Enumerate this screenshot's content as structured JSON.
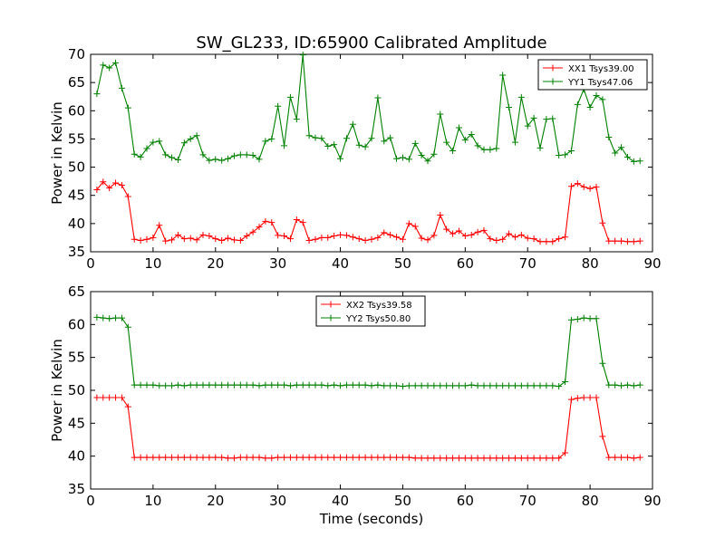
{
  "figure": {
    "title": "SW_GL233, ID:65900 Calibrated Amplitude"
  },
  "chart_data": [
    {
      "type": "line",
      "title": "SW_GL233, ID:65900 Calibrated Amplitude",
      "xlabel": "",
      "ylabel": "Power in Kelvin",
      "xlim": [
        0,
        90
      ],
      "ylim": [
        35,
        70
      ],
      "xticks": [
        0,
        10,
        20,
        30,
        40,
        50,
        60,
        70,
        80,
        90
      ],
      "yticks": [
        35,
        40,
        45,
        50,
        55,
        60,
        65,
        70
      ],
      "grid": false,
      "legend_position": "top-right",
      "x": [
        1,
        2,
        3,
        4,
        5,
        6,
        7,
        8,
        9,
        10,
        11,
        12,
        13,
        14,
        15,
        16,
        17,
        18,
        19,
        20,
        21,
        22,
        23,
        24,
        25,
        26,
        27,
        28,
        29,
        30,
        31,
        32,
        33,
        34,
        35,
        36,
        37,
        38,
        39,
        40,
        41,
        42,
        43,
        44,
        45,
        46,
        47,
        48,
        49,
        50,
        51,
        52,
        53,
        54,
        55,
        56,
        57,
        58,
        59,
        60,
        61,
        62,
        63,
        64,
        65,
        66,
        67,
        68,
        69,
        70,
        71,
        72,
        73,
        74,
        75,
        76,
        77,
        78,
        79,
        80,
        81,
        82,
        83,
        84,
        85,
        86,
        87,
        88
      ],
      "series": [
        {
          "name": "XX1 Tsys39.00",
          "color": "#ff0000",
          "values": [
            46.0,
            47.4,
            46.3,
            47.2,
            46.8,
            44.8,
            37.2,
            37.0,
            37.2,
            37.5,
            39.7,
            36.9,
            37.1,
            38.0,
            37.3,
            37.4,
            37.1,
            38.0,
            37.8,
            37.3,
            37.0,
            37.4,
            37.1,
            37.0,
            37.8,
            38.5,
            39.4,
            40.4,
            40.2,
            37.9,
            37.8,
            37.3,
            40.7,
            40.2,
            37.0,
            37.2,
            37.5,
            37.5,
            37.8,
            38.0,
            37.9,
            37.6,
            37.3,
            37.0,
            37.2,
            37.5,
            38.4,
            38.0,
            37.6,
            37.2,
            40.0,
            39.5,
            37.4,
            37.1,
            37.9,
            41.5,
            39.0,
            38.2,
            38.7,
            37.8,
            38.0,
            38.5,
            38.8,
            37.3,
            37.0,
            37.2,
            38.2,
            37.6,
            38.0,
            37.4,
            37.3,
            36.8,
            36.8,
            36.8,
            37.3,
            37.6,
            46.6,
            47.1,
            46.5,
            46.2,
            46.5,
            40.1,
            36.9,
            36.9,
            36.9,
            36.8,
            36.8,
            36.9
          ]
        },
        {
          "name": "YY1 Tsys47.06",
          "color": "#008000",
          "values": [
            63.0,
            68.1,
            67.6,
            68.5,
            64.0,
            60.5,
            52.3,
            51.8,
            53.3,
            54.4,
            54.6,
            52.2,
            51.7,
            51.3,
            54.3,
            55.0,
            55.6,
            52.2,
            51.2,
            51.4,
            51.2,
            51.5,
            52.0,
            52.2,
            52.2,
            52.1,
            51.4,
            54.6,
            55.0,
            60.8,
            53.8,
            62.4,
            58.5,
            69.9,
            55.6,
            55.2,
            55.1,
            53.7,
            54.0,
            51.5,
            55.1,
            57.6,
            53.9,
            53.6,
            55.1,
            62.3,
            54.6,
            55.2,
            51.5,
            51.7,
            51.4,
            54.2,
            52.1,
            51.1,
            52.3,
            59.4,
            54.4,
            52.9,
            57.0,
            54.8,
            55.8,
            53.8,
            53.1,
            53.1,
            53.3,
            66.3,
            60.6,
            54.4,
            62.4,
            57.3,
            58.7,
            53.4,
            58.5,
            58.6,
            52.1,
            52.2,
            52.9,
            61.1,
            63.8,
            60.6,
            62.7,
            62.0,
            55.3,
            52.5,
            53.5,
            51.8,
            51.0,
            51.1
          ]
        }
      ]
    },
    {
      "type": "line",
      "title": "",
      "xlabel": "Time (seconds)",
      "ylabel": "Power in Kelvin",
      "xlim": [
        0,
        90
      ],
      "ylim": [
        35,
        65
      ],
      "xticks": [
        0,
        10,
        20,
        30,
        40,
        50,
        60,
        70,
        80,
        90
      ],
      "yticks": [
        35,
        40,
        45,
        50,
        55,
        60,
        65
      ],
      "grid": false,
      "legend_position": "top-center",
      "x": [
        1,
        2,
        3,
        4,
        5,
        6,
        7,
        8,
        9,
        10,
        11,
        12,
        13,
        14,
        15,
        16,
        17,
        18,
        19,
        20,
        21,
        22,
        23,
        24,
        25,
        26,
        27,
        28,
        29,
        30,
        31,
        32,
        33,
        34,
        35,
        36,
        37,
        38,
        39,
        40,
        41,
        42,
        43,
        44,
        45,
        46,
        47,
        48,
        49,
        50,
        51,
        52,
        53,
        54,
        55,
        56,
        57,
        58,
        59,
        60,
        61,
        62,
        63,
        64,
        65,
        66,
        67,
        68,
        69,
        70,
        71,
        72,
        73,
        74,
        75,
        76,
        77,
        78,
        79,
        80,
        81,
        82,
        83,
        84,
        85,
        86,
        87,
        88
      ],
      "series": [
        {
          "name": "XX2 Tsys39.58",
          "color": "#ff0000",
          "values": [
            48.9,
            48.9,
            48.9,
            48.9,
            48.9,
            47.5,
            39.8,
            39.8,
            39.8,
            39.8,
            39.8,
            39.8,
            39.8,
            39.8,
            39.8,
            39.8,
            39.8,
            39.8,
            39.8,
            39.8,
            39.8,
            39.7,
            39.7,
            39.8,
            39.8,
            39.8,
            39.8,
            39.7,
            39.7,
            39.8,
            39.8,
            39.8,
            39.8,
            39.8,
            39.8,
            39.8,
            39.8,
            39.8,
            39.8,
            39.8,
            39.8,
            39.8,
            39.8,
            39.8,
            39.8,
            39.8,
            39.8,
            39.8,
            39.8,
            39.8,
            39.8,
            39.7,
            39.7,
            39.7,
            39.7,
            39.7,
            39.7,
            39.7,
            39.7,
            39.7,
            39.7,
            39.7,
            39.7,
            39.7,
            39.7,
            39.7,
            39.7,
            39.7,
            39.7,
            39.7,
            39.7,
            39.7,
            39.7,
            39.7,
            39.7,
            40.5,
            48.6,
            48.8,
            48.9,
            48.9,
            48.9,
            43.0,
            39.8,
            39.8,
            39.8,
            39.8,
            39.7,
            39.8
          ]
        },
        {
          "name": "YY2 Tsys50.80",
          "color": "#008000",
          "values": [
            61.1,
            61.0,
            60.9,
            61.0,
            61.0,
            59.6,
            50.8,
            50.8,
            50.8,
            50.8,
            50.7,
            50.7,
            50.7,
            50.8,
            50.7,
            50.8,
            50.8,
            50.8,
            50.8,
            50.8,
            50.8,
            50.8,
            50.8,
            50.8,
            50.8,
            50.8,
            50.7,
            50.8,
            50.8,
            50.8,
            50.8,
            50.7,
            50.8,
            50.8,
            50.8,
            50.8,
            50.8,
            50.7,
            50.8,
            50.7,
            50.8,
            50.8,
            50.8,
            50.8,
            50.7,
            50.8,
            50.7,
            50.7,
            50.7,
            50.6,
            50.7,
            50.7,
            50.7,
            50.7,
            50.7,
            50.7,
            50.7,
            50.7,
            50.7,
            50.7,
            50.8,
            50.7,
            50.7,
            50.7,
            50.7,
            50.7,
            50.7,
            50.7,
            50.7,
            50.7,
            50.7,
            50.7,
            50.7,
            50.7,
            50.6,
            51.3,
            60.7,
            60.8,
            61.0,
            60.9,
            60.9,
            54.1,
            50.8,
            50.8,
            50.7,
            50.8,
            50.7,
            50.8
          ]
        }
      ]
    }
  ]
}
